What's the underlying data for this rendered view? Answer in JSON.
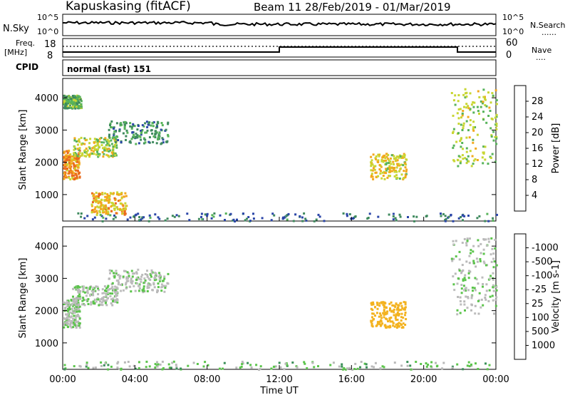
{
  "header": {
    "title": "Kapuskasing (fitACF)",
    "subtitle": "Beam 11   28/Feb/2019 - 01/Mar/2019"
  },
  "top_panels": {
    "nsky_label": "N.Sky",
    "nsearch_label": "N.Search",
    "nsearch_legend": "......",
    "log_ticks": [
      "10^5",
      "10^0"
    ],
    "freq_label": "Freq.",
    "freq_unit": "[MHz]",
    "freq_ticks": [
      "18",
      "8"
    ],
    "nave_label": "Nave",
    "nave_legend": "....",
    "nave_ticks": [
      "60",
      "0"
    ],
    "cpid_label": "CPID",
    "cpid_value": "normal (fast) 151"
  },
  "colors": {
    "power": [
      "#0b1fe8",
      "#2b46a8",
      "#3f8a5e",
      "#57b35a",
      "#c8d633",
      "#f2a81d",
      "#ea6a1c",
      "#e0281a"
    ],
    "velocity": [
      "#e8231b",
      "#ef6b1d",
      "#f3b21f",
      "#bdbdbd",
      "#b9b9b9",
      "#5bc44b",
      "#3a8f58",
      "#2c5d99",
      "#1b2fc2"
    ]
  },
  "chart_data": [
    {
      "type": "heatmap",
      "title": "",
      "xlabel": "",
      "ylabel": "Slant Range [km]",
      "xlim": [
        0,
        24
      ],
      "ylim": [
        180,
        4600
      ],
      "x_ticks": [
        "00:00",
        "04:00",
        "08:00",
        "12:00",
        "16:00",
        "20:00",
        "00:00"
      ],
      "y_ticks": [
        1000,
        2000,
        3000,
        4000
      ],
      "colorbar": {
        "label": "Power [dB]",
        "ticks": [
          4,
          8,
          12,
          16,
          20,
          24,
          28
        ],
        "range": [
          0,
          30
        ]
      },
      "regions": [
        {
          "name": "backscatter-a",
          "x": [
            0.0,
            0.9
          ],
          "y": [
            1500,
            2400
          ],
          "value": 22
        },
        {
          "name": "backscatter-b",
          "x": [
            0.5,
            3.0
          ],
          "y": [
            2200,
            2800
          ],
          "value": 16
        },
        {
          "name": "backscatter-c",
          "x": [
            2.5,
            5.8
          ],
          "y": [
            2600,
            3300
          ],
          "value": 10
        },
        {
          "name": "far-range-early",
          "x": [
            0.0,
            1.0
          ],
          "y": [
            3700,
            4100
          ],
          "value": 12
        },
        {
          "name": "near-range-band",
          "x": [
            0.0,
            24.0
          ],
          "y": [
            200,
            450
          ],
          "value": 8
        },
        {
          "name": "mid-blob",
          "x": [
            1.5,
            3.5
          ],
          "y": [
            400,
            1100
          ],
          "value": 20
        },
        {
          "name": "evening-streak",
          "x": [
            17.0,
            19.0
          ],
          "y": [
            1500,
            2300
          ],
          "value": 18
        },
        {
          "name": "late-high",
          "x": [
            21.5,
            24.0
          ],
          "y": [
            1900,
            4300
          ],
          "value": 16
        }
      ]
    },
    {
      "type": "heatmap",
      "title": "",
      "xlabel": "Time UT",
      "ylabel": "Slant Range [km]",
      "xlim": [
        0,
        24
      ],
      "ylim": [
        180,
        4600
      ],
      "x_ticks": [
        "00:00",
        "04:00",
        "08:00",
        "12:00",
        "16:00",
        "20:00",
        "00:00"
      ],
      "y_ticks": [
        1000,
        2000,
        3000,
        4000
      ],
      "colorbar": {
        "label": "Velocity [m s-1]",
        "ticks": [
          "1000",
          "500",
          "100",
          "25",
          "-25",
          "-100",
          "-500",
          "-1000"
        ],
        "range": [
          -1000,
          1000
        ]
      },
      "regions": [
        {
          "name": "backscatter-a",
          "x": [
            0.0,
            0.9
          ],
          "y": [
            1500,
            2400
          ],
          "value": 0
        },
        {
          "name": "backscatter-b",
          "x": [
            0.5,
            3.0
          ],
          "y": [
            2200,
            2800
          ],
          "value": 0
        },
        {
          "name": "backscatter-c",
          "x": [
            2.5,
            5.8
          ],
          "y": [
            2600,
            3300
          ],
          "value": 0
        },
        {
          "name": "near-range-band",
          "x": [
            0.0,
            24.0
          ],
          "y": [
            200,
            450
          ],
          "value": 50
        },
        {
          "name": "evening-streak",
          "x": [
            17.0,
            19.0
          ],
          "y": [
            1500,
            2300
          ],
          "value": -400
        },
        {
          "name": "late-high",
          "x": [
            21.5,
            24.0
          ],
          "y": [
            1900,
            4300
          ],
          "value": 0
        }
      ]
    }
  ]
}
